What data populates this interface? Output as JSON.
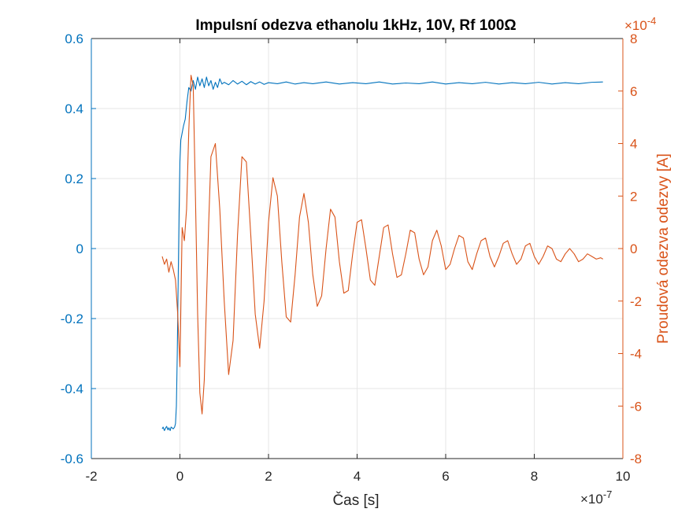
{
  "chart_data": {
    "type": "line",
    "title": "Impulsní odezva ethanolu 1kHz, 10V, Rf 100Ω",
    "xlabel": "Čas [s]",
    "ylabel_left": "",
    "ylabel_right": "Proudová odezva odezvy [A]",
    "x_exponent_label": "×10",
    "x_exponent_power": "-7",
    "y_right_exponent_label": "×10",
    "y_right_exponent_power": "-4",
    "xlim": [
      -2,
      10
    ],
    "ylim_left": [
      -0.6,
      0.6
    ],
    "ylim_right": [
      -8,
      8
    ],
    "x_ticks": [
      "-2",
      "0",
      "2",
      "4",
      "6",
      "8",
      "10"
    ],
    "y_left_ticks": [
      "-0.6",
      "-0.4",
      "-0.2",
      "0",
      "0.2",
      "0.4",
      "0.6"
    ],
    "y_right_ticks": [
      "-8",
      "-6",
      "-4",
      "-2",
      "0",
      "2",
      "4",
      "6",
      "8"
    ],
    "grid": true,
    "colors": {
      "left_series": "#0072BD",
      "right_series": "#D95319",
      "grid": "#e6e6e6",
      "axis": "#262626"
    },
    "series": [
      {
        "axis": "left",
        "color": "#0072BD",
        "x": [
          -0.4,
          -0.38,
          -0.35,
          -0.32,
          -0.3,
          -0.27,
          -0.25,
          -0.22,
          -0.2,
          -0.15,
          -0.12,
          -0.1,
          -0.08,
          -0.06,
          -0.04,
          -0.02,
          0.0,
          0.02,
          0.05,
          0.08,
          0.12,
          0.16,
          0.2,
          0.25,
          0.3,
          0.35,
          0.4,
          0.45,
          0.5,
          0.55,
          0.6,
          0.65,
          0.7,
          0.75,
          0.8,
          0.85,
          0.9,
          0.95,
          1.0,
          1.1,
          1.2,
          1.3,
          1.4,
          1.5,
          1.6,
          1.7,
          1.8,
          1.9,
          2.0,
          2.2,
          2.4,
          2.6,
          2.8,
          3.0,
          3.3,
          3.6,
          3.9,
          4.2,
          4.5,
          4.8,
          5.1,
          5.4,
          5.7,
          6.0,
          6.3,
          6.6,
          6.9,
          7.2,
          7.5,
          7.8,
          8.1,
          8.4,
          8.7,
          9.0,
          9.3,
          9.55
        ],
        "y": [
          -0.515,
          -0.51,
          -0.52,
          -0.512,
          -0.508,
          -0.518,
          -0.512,
          -0.52,
          -0.51,
          -0.515,
          -0.51,
          -0.5,
          -0.45,
          -0.3,
          -0.1,
          0.1,
          0.25,
          0.31,
          0.33,
          0.35,
          0.37,
          0.42,
          0.46,
          0.45,
          0.48,
          0.455,
          0.49,
          0.465,
          0.485,
          0.46,
          0.49,
          0.465,
          0.48,
          0.455,
          0.475,
          0.46,
          0.485,
          0.47,
          0.475,
          0.468,
          0.48,
          0.47,
          0.478,
          0.468,
          0.477,
          0.47,
          0.476,
          0.469,
          0.474,
          0.471,
          0.476,
          0.47,
          0.474,
          0.471,
          0.476,
          0.47,
          0.474,
          0.471,
          0.476,
          0.47,
          0.473,
          0.471,
          0.476,
          0.47,
          0.474,
          0.471,
          0.475,
          0.47,
          0.474,
          0.471,
          0.475,
          0.47,
          0.474,
          0.471,
          0.475,
          0.476
        ]
      },
      {
        "axis": "right",
        "color": "#D95319",
        "x": [
          -0.4,
          -0.35,
          -0.3,
          -0.25,
          -0.2,
          -0.15,
          -0.1,
          -0.05,
          0.0,
          0.05,
          0.1,
          0.15,
          0.2,
          0.25,
          0.3,
          0.35,
          0.4,
          0.45,
          0.5,
          0.55,
          0.6,
          0.65,
          0.7,
          0.8,
          0.9,
          1.0,
          1.1,
          1.2,
          1.3,
          1.4,
          1.5,
          1.6,
          1.7,
          1.8,
          1.9,
          2.0,
          2.1,
          2.2,
          2.3,
          2.4,
          2.5,
          2.6,
          2.7,
          2.8,
          2.9,
          3.0,
          3.1,
          3.2,
          3.3,
          3.4,
          3.5,
          3.6,
          3.7,
          3.8,
          3.9,
          4.0,
          4.1,
          4.2,
          4.3,
          4.4,
          4.5,
          4.6,
          4.7,
          4.8,
          4.9,
          5.0,
          5.1,
          5.2,
          5.3,
          5.4,
          5.5,
          5.6,
          5.7,
          5.8,
          5.9,
          6.0,
          6.1,
          6.2,
          6.3,
          6.4,
          6.5,
          6.6,
          6.7,
          6.8,
          6.9,
          7.0,
          7.1,
          7.2,
          7.3,
          7.4,
          7.5,
          7.6,
          7.7,
          7.8,
          7.9,
          8.0,
          8.1,
          8.2,
          8.3,
          8.4,
          8.5,
          8.6,
          8.7,
          8.8,
          8.9,
          9.0,
          9.1,
          9.2,
          9.3,
          9.4,
          9.5,
          9.55
        ],
        "y": [
          -0.3,
          -0.6,
          -0.4,
          -0.9,
          -0.5,
          -0.8,
          -1.2,
          -2.5,
          -4.5,
          0.8,
          0.3,
          1.5,
          4.5,
          6.6,
          6.2,
          2.0,
          -2.5,
          -5.5,
          -6.3,
          -5.0,
          -2.0,
          1.0,
          3.5,
          4.0,
          1.5,
          -2.0,
          -4.8,
          -3.5,
          0.5,
          3.5,
          3.3,
          0.5,
          -2.5,
          -3.8,
          -2.0,
          1.0,
          2.7,
          2.0,
          -0.5,
          -2.6,
          -2.8,
          -1.0,
          1.2,
          2.1,
          1.0,
          -1.0,
          -2.2,
          -1.8,
          0.0,
          1.5,
          1.2,
          -0.5,
          -1.7,
          -1.6,
          -0.2,
          1.0,
          1.1,
          0.0,
          -1.2,
          -1.4,
          -0.3,
          0.8,
          0.9,
          -0.2,
          -1.1,
          -1.0,
          -0.2,
          0.7,
          0.6,
          -0.4,
          -1.0,
          -0.7,
          0.3,
          0.7,
          0.1,
          -0.8,
          -0.6,
          0.0,
          0.5,
          0.4,
          -0.5,
          -0.8,
          -0.2,
          0.3,
          0.4,
          -0.3,
          -0.7,
          -0.3,
          0.2,
          0.3,
          -0.2,
          -0.6,
          -0.4,
          0.1,
          0.2,
          -0.3,
          -0.6,
          -0.3,
          0.1,
          0.0,
          -0.4,
          -0.5,
          -0.2,
          0.0,
          -0.2,
          -0.5,
          -0.4,
          -0.2,
          -0.3,
          -0.4,
          -0.35,
          -0.4
        ]
      }
    ]
  }
}
